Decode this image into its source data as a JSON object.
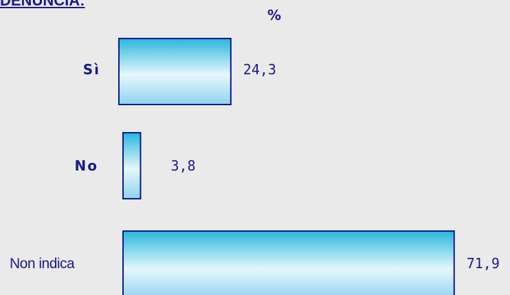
{
  "title": "DENUNCIA:",
  "unit_label": "%",
  "chart_data": {
    "type": "bar",
    "orientation": "horizontal",
    "categories": [
      "Sì",
      "No",
      "Non indica"
    ],
    "values": [
      24.3,
      3.8,
      71.9
    ],
    "value_labels": [
      "24,3",
      "3,8",
      "71,9"
    ],
    "title": "DENUNCIA:",
    "xlabel": "",
    "ylabel": "",
    "xlim": [
      0,
      100
    ],
    "grid": false,
    "legend": "none",
    "bar_gradient": [
      "#29b6dc",
      "#e6f7fd",
      "#8fd3ee"
    ],
    "bar_border": "#0a1a8c",
    "text_color": "#1a1a8c",
    "background": "#eaeaea"
  }
}
